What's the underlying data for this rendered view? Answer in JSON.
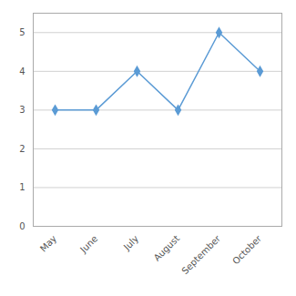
{
  "chart_data": {
    "type": "line",
    "categories": [
      "May",
      "June",
      "July",
      "August",
      "September",
      "October"
    ],
    "values": [
      3,
      3,
      4,
      3,
      5,
      4
    ],
    "color": "#5b9bd5",
    "marker": "diamond",
    "ylim": [
      0,
      5.5
    ],
    "yticks": [
      0,
      1,
      2,
      3,
      4,
      5
    ],
    "grid": true
  }
}
